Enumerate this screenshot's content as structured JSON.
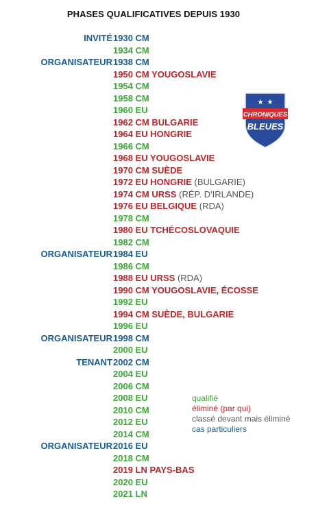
{
  "title": "PHASES QUALIFICATIVES DEPUIS 1930",
  "colors": {
    "qualified": "#3aa935",
    "eliminated": "#b8262a",
    "ahead": "#555555",
    "special": "#1a5a91"
  },
  "logo": {
    "line1": "CHRONIQUES",
    "line2": "BLEUES"
  },
  "rows": [
    {
      "pre": "INVITÉ ",
      "main": "1930 CM",
      "status": "special"
    },
    {
      "pre": "",
      "main": "1934 CM",
      "status": "qualified"
    },
    {
      "pre": "ORGANISATEUR ",
      "main": "1938 CM",
      "status": "special"
    },
    {
      "pre": "",
      "main": "1950 CM YOUGOSLAVIE",
      "status": "eliminated"
    },
    {
      "pre": "",
      "main": "1954 CM",
      "status": "qualified"
    },
    {
      "pre": "",
      "main": "1958 CM",
      "status": "qualified"
    },
    {
      "pre": "",
      "main": "1960 EU",
      "status": "qualified"
    },
    {
      "pre": "",
      "main": "1962 CM BULGARIE",
      "status": "eliminated"
    },
    {
      "pre": "",
      "main": "1964 EU HONGRIE",
      "status": "eliminated"
    },
    {
      "pre": "",
      "main": "1966 CM",
      "status": "qualified"
    },
    {
      "pre": "",
      "main": "1968 EU YOUGOSLAVIE",
      "status": "eliminated"
    },
    {
      "pre": "",
      "main": "1970 CM SUÈDE",
      "status": "eliminated"
    },
    {
      "pre": "",
      "main": "1972 EU HONGRIE",
      "status": "eliminated",
      "extra": "(BULGARIE)"
    },
    {
      "pre": "",
      "main": "1974 CM URSS",
      "status": "eliminated",
      "extra": "(RÉP. D'IRLANDE)"
    },
    {
      "pre": "",
      "main": "1976 EU BELGIQUE",
      "status": "eliminated",
      "extra": "(RDA)"
    },
    {
      "pre": "",
      "main": "1978 CM",
      "status": "qualified"
    },
    {
      "pre": "",
      "main": "1980 EU TCHÉCOSLOVAQUIE",
      "status": "eliminated"
    },
    {
      "pre": "",
      "main": "1982 CM",
      "status": "qualified"
    },
    {
      "pre": "ORGANISATEUR ",
      "main": "1984 EU",
      "status": "special"
    },
    {
      "pre": "",
      "main": "1986 CM",
      "status": "qualified"
    },
    {
      "pre": "",
      "main": "1988 EU URSS",
      "status": "eliminated",
      "extra": "(RDA)"
    },
    {
      "pre": "",
      "main": "1990 CM YOUGOSLAVIE, ÉCOSSE",
      "status": "eliminated"
    },
    {
      "pre": "",
      "main": "1992 EU",
      "status": "qualified"
    },
    {
      "pre": "",
      "main": "1994 CM SUÈDE, BULGARIE",
      "status": "eliminated"
    },
    {
      "pre": "",
      "main": "1996 EU",
      "status": "qualified"
    },
    {
      "pre": "ORGANISATEUR ",
      "main": "1998 CM",
      "status": "special"
    },
    {
      "pre": "",
      "main": "2000 EU",
      "status": "qualified"
    },
    {
      "pre": "TENANT ",
      "main": "2002 CM",
      "status": "special"
    },
    {
      "pre": "",
      "main": "2004 EU",
      "status": "qualified"
    },
    {
      "pre": "",
      "main": "2006 CM",
      "status": "qualified"
    },
    {
      "pre": "",
      "main": "2008 EU",
      "status": "qualified"
    },
    {
      "pre": "",
      "main": "2010 CM",
      "status": "qualified"
    },
    {
      "pre": "",
      "main": "2012 EU",
      "status": "qualified"
    },
    {
      "pre": "",
      "main": "2014 CM",
      "status": "qualified"
    },
    {
      "pre": "ORGANISATEUR ",
      "main": "2016 EU",
      "status": "special"
    },
    {
      "pre": "",
      "main": "2018 CM",
      "status": "qualified"
    },
    {
      "pre": "",
      "main": "2019 LN PAYS-BAS",
      "status": "eliminated"
    },
    {
      "pre": "",
      "main": "2020 EU",
      "status": "qualified"
    },
    {
      "pre": "",
      "main": "2021 LN",
      "status": "qualified"
    }
  ],
  "legend": [
    {
      "label": "qualifié",
      "status": "qualified"
    },
    {
      "label": "éliminé (par qui)",
      "status": "eliminated"
    },
    {
      "label": "classé devant mais éliminé",
      "status": "ahead"
    },
    {
      "label": "cas particuliers",
      "status": "special"
    }
  ]
}
